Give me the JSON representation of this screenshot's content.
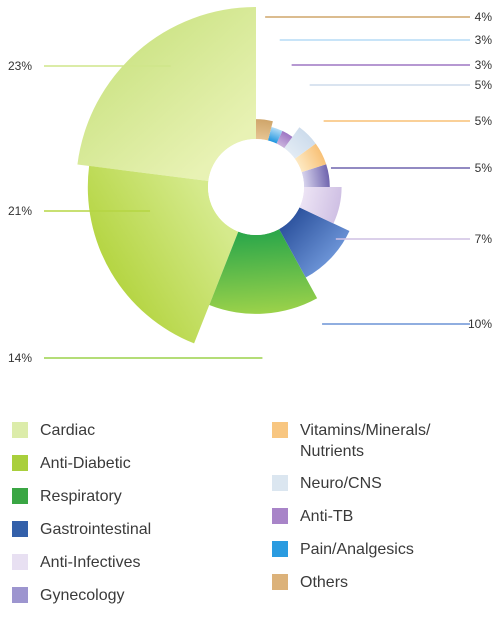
{
  "chart_data": {
    "type": "pie",
    "subtype": "variable-radius donut",
    "slices": [
      {
        "name": "Cardiac",
        "label": "23%",
        "value": 23,
        "color_start": "#e8f2b4",
        "color_end": "#cfe58a"
      },
      {
        "name": "Anti-Diabetic",
        "label": "21%",
        "value": 21,
        "color_start": "#d5ea8c",
        "color_end": "#b5d543"
      },
      {
        "name": "Respiratory",
        "label": "14%",
        "value": 14,
        "color_start": "#2ea84a",
        "color_end": "#9cd24a"
      },
      {
        "name": "Gastrointestinal",
        "label": "10%",
        "value": 10,
        "color_start": "#2f55a0",
        "color_end": "#6b93d6"
      },
      {
        "name": "Anti-Infectives",
        "label": "7%",
        "value": 7,
        "color_start": "#ece3f4",
        "color_end": "#cfc0e4"
      },
      {
        "name": "Gynecology",
        "label": "5%",
        "value": 5,
        "color_start": "#d6d2ec",
        "color_end": "#6f64ae"
      },
      {
        "name": "Vitamins/Minerals/Nutrients",
        "label": "5%",
        "value": 5,
        "color_start": "#fde9c2",
        "color_end": "#f8c177"
      },
      {
        "name": "Neuro/CNS",
        "label": "5%",
        "value": 5,
        "color_start": "#e2ebf4",
        "color_end": "#cddcec"
      },
      {
        "name": "Anti-TB",
        "label": "3%",
        "value": 3,
        "color_start": "#c9b2dc",
        "color_end": "#9d76c4"
      },
      {
        "name": "Pain/Analgesics",
        "label": "3%",
        "value": 3,
        "color_start": "#1f96e0",
        "color_end": "#b5dcf6"
      },
      {
        "name": "Others",
        "label": "4%",
        "value": 4,
        "color_start": "#e6c492",
        "color_end": "#cfa56a"
      }
    ]
  },
  "legend": {
    "left": [
      {
        "label": "Cardiac",
        "color": "#dcecaa"
      },
      {
        "label": "Anti-Diabetic",
        "color": "#a9cf3c"
      },
      {
        "label": "Respiratory",
        "color": "#3aa644"
      },
      {
        "label": "Gastrointestinal",
        "color": "#3360aa"
      },
      {
        "label": "Anti-Infectives",
        "color": "#e8e0f2"
      },
      {
        "label": "Gynecology",
        "color": "#9d95cf"
      }
    ],
    "right": [
      {
        "label": "Vitamins/Minerals/",
        "label2": "Nutrients",
        "color": "#f8c680"
      },
      {
        "label": "Neuro/CNS",
        "label2": "",
        "color": "#dbe6f0"
      },
      {
        "label": "Anti-TB",
        "label2": "",
        "color": "#a884c8"
      },
      {
        "label": "Pain/Analgesics",
        "label2": "",
        "color": "#2a9be0"
      },
      {
        "label": "Others",
        "label2": "",
        "color": "#dcb27a"
      }
    ]
  }
}
